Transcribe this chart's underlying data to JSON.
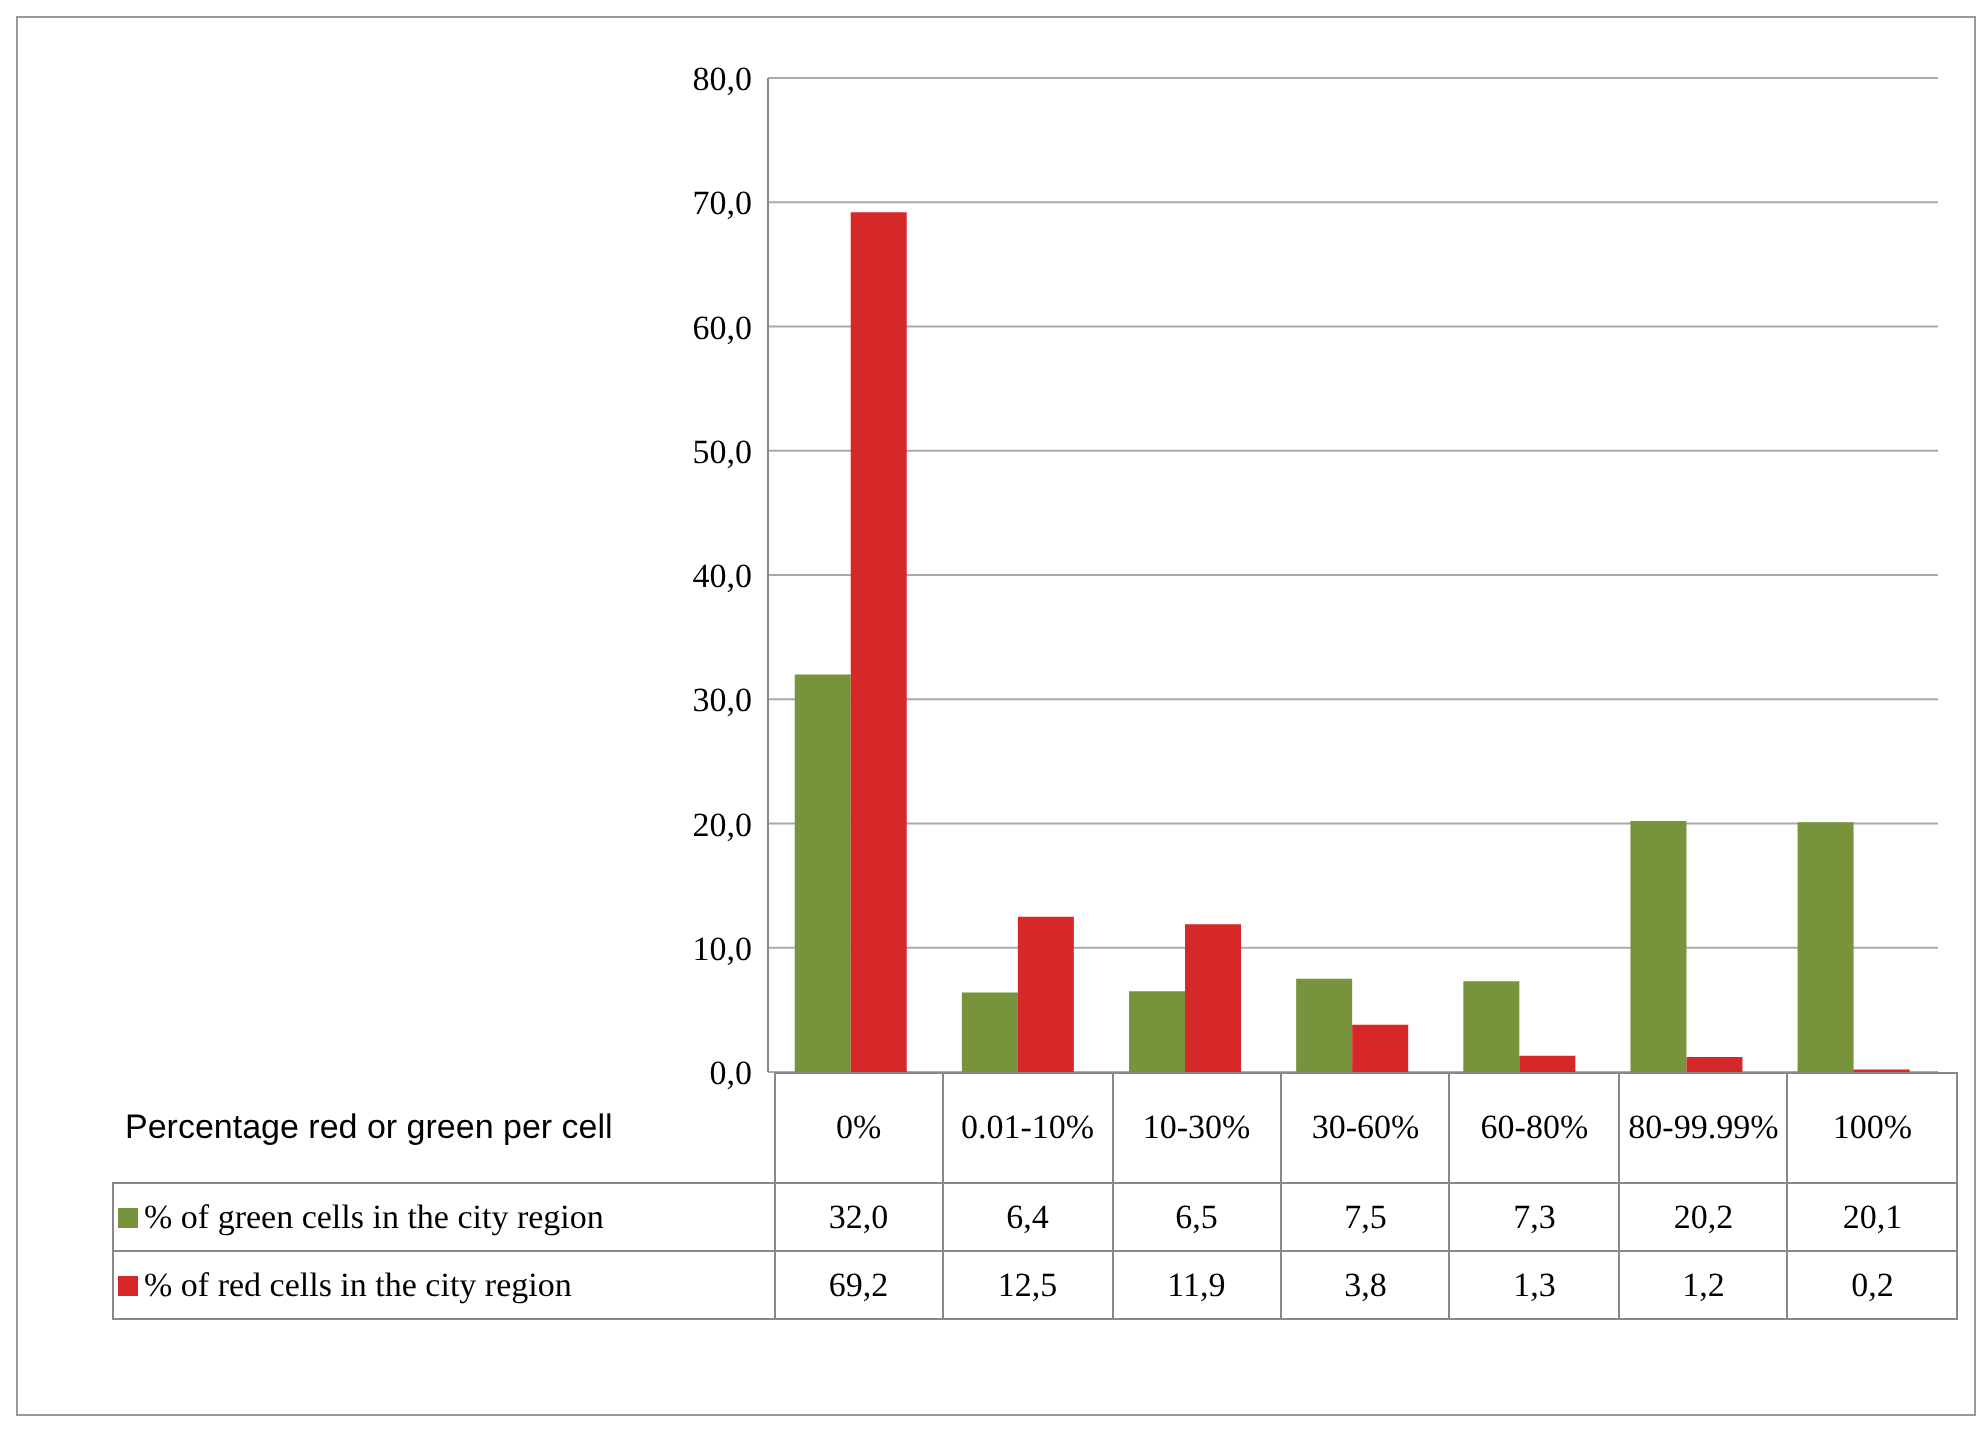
{
  "chart_data": {
    "type": "bar",
    "xlabel": "Percentage red or green per cell",
    "categories": [
      "0%",
      "0.01-10%",
      "10-30%",
      "30-60%",
      "60-80%",
      "80-99.99%",
      "100%"
    ],
    "series": [
      {
        "name": "% of green cells in the city region",
        "color": "#77933c",
        "values": [
          32.0,
          6.4,
          6.5,
          7.5,
          7.3,
          20.2,
          20.1
        ],
        "value_labels": [
          "32,0",
          "6,4",
          "6,5",
          "7,5",
          "7,3",
          "20,2",
          "20,1"
        ]
      },
      {
        "name": "% of red cells in the city region",
        "color": "#d62828",
        "values": [
          69.2,
          12.5,
          11.9,
          3.8,
          1.3,
          1.2,
          0.2
        ],
        "value_labels": [
          "69,2",
          "12,5",
          "11,9",
          "3,8",
          "1,3",
          "1,2",
          "0,2"
        ]
      }
    ],
    "ylim": [
      0,
      80
    ],
    "yticks": [
      {
        "value": 0,
        "label": "0,0"
      },
      {
        "value": 10,
        "label": "10,0"
      },
      {
        "value": 20,
        "label": "20,0"
      },
      {
        "value": 30,
        "label": "30,0"
      },
      {
        "value": 40,
        "label": "40,0"
      },
      {
        "value": 50,
        "label": "50,0"
      },
      {
        "value": 60,
        "label": "60,0"
      },
      {
        "value": 70,
        "label": "70,0"
      },
      {
        "value": 80,
        "label": "80,0"
      }
    ],
    "grid": "y",
    "legend": "bottom"
  }
}
